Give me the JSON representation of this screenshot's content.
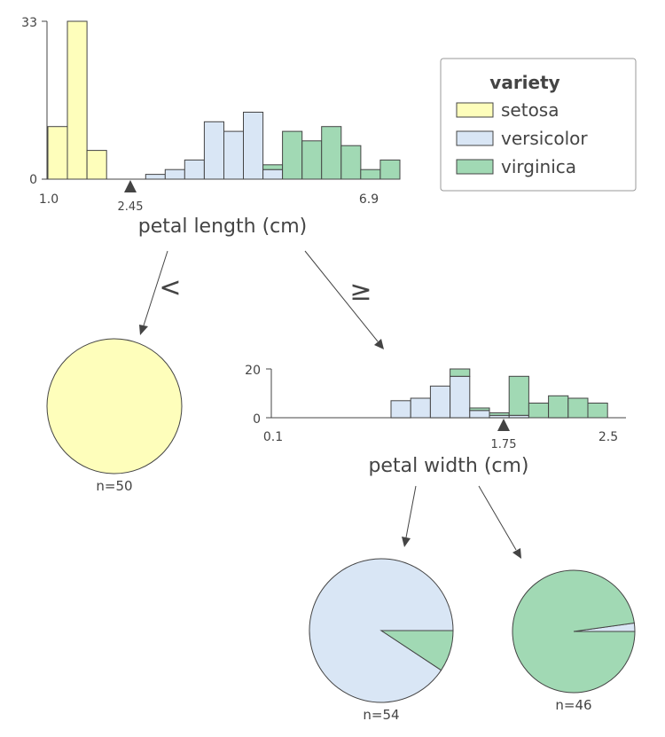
{
  "colors": {
    "setosa": "#FEFEBB",
    "versicolor": "#D9E6F5",
    "virginica": "#A1D9B4",
    "edge": "#444444",
    "bar_edge": "#444444"
  },
  "legend": {
    "title": "variety",
    "items": [
      {
        "label": "setosa",
        "color_key": "setosa"
      },
      {
        "label": "versicolor",
        "color_key": "versicolor"
      },
      {
        "label": "virginica",
        "color_key": "virginica"
      }
    ]
  },
  "root": {
    "feature_label": "petal length (cm)",
    "split_value": "2.45",
    "x_min_label": "1.0",
    "x_max_label": "6.9",
    "y_max_label": "33",
    "y_min_label": "0",
    "left_edge_label": "<",
    "right_edge_label": "≥"
  },
  "split2": {
    "feature_label": "petal width (cm)",
    "split_value": "1.75",
    "x_min_label": "0.1",
    "x_max_label": "2.5",
    "y_max_label": "20",
    "y_min_label": "0"
  },
  "leaves": [
    {
      "id": "leaf-setosa",
      "count_label": "n=50",
      "fractions": {
        "setosa": 1.0,
        "versicolor": 0.0,
        "virginica": 0.0
      }
    },
    {
      "id": "leaf-versicolor",
      "count_label": "n=54",
      "fractions": {
        "setosa": 0.0,
        "versicolor": 0.907,
        "virginica": 0.093
      }
    },
    {
      "id": "leaf-virginica",
      "count_label": "n=46",
      "fractions": {
        "setosa": 0.0,
        "versicolor": 0.022,
        "virginica": 0.978
      }
    }
  ],
  "chart_data": [
    {
      "type": "bar",
      "xlabel": "petal length (cm)",
      "xlim": [
        1.0,
        6.9
      ],
      "ylim": [
        0,
        33
      ],
      "bin_count": 27,
      "series": [
        {
          "name": "setosa",
          "values": [
            11,
            33,
            6,
            0,
            0,
            0,
            0,
            0,
            0,
            0,
            0,
            0,
            0,
            0,
            0,
            0,
            0,
            0,
            0,
            0,
            0,
            0,
            0,
            0,
            0,
            0,
            0
          ]
        },
        {
          "name": "versicolor",
          "values": [
            0,
            0,
            0,
            0,
            0,
            1,
            2,
            4,
            12,
            10,
            14,
            2,
            0,
            0,
            0,
            0,
            0,
            0,
            0,
            0,
            0,
            0,
            0,
            0,
            0,
            0,
            0
          ]
        },
        {
          "name": "virginica",
          "values": [
            0,
            0,
            0,
            0,
            0,
            0,
            0,
            0,
            0,
            0,
            0,
            1,
            10,
            8,
            11,
            7,
            2,
            4,
            0,
            0,
            0,
            0,
            0,
            0,
            0,
            0,
            0
          ]
        }
      ],
      "split": 2.45
    },
    {
      "type": "bar",
      "xlabel": "petal width (cm)",
      "xlim": [
        0.1,
        2.5
      ],
      "ylim": [
        0,
        20
      ],
      "bins": [
        {
          "versicolor": 7,
          "virginica": 0
        },
        {
          "versicolor": 8,
          "virginica": 0
        },
        {
          "versicolor": 13,
          "virginica": 0
        },
        {
          "versicolor": 17,
          "virginica": 3
        },
        {
          "versicolor": 3,
          "virginica": 1
        },
        {
          "versicolor": 1,
          "virginica": 1
        },
        {
          "versicolor": 1,
          "virginica": 16
        },
        {
          "versicolor": 0,
          "virginica": 6
        },
        {
          "versicolor": 0,
          "virginica": 9
        },
        {
          "versicolor": 0,
          "virginica": 8
        },
        {
          "versicolor": 0,
          "virginica": 6
        }
      ],
      "split": 1.75
    }
  ]
}
